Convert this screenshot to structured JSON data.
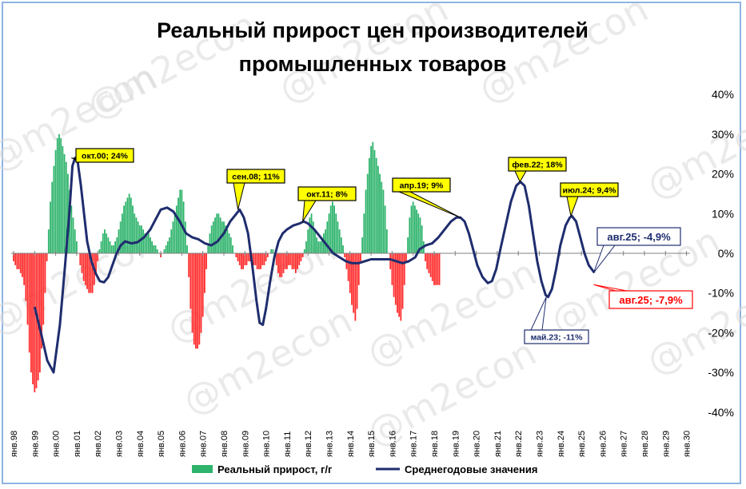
{
  "watermark": "@m2econ",
  "chart_data": {
    "type": "bar+line",
    "title_lines": [
      "Реальный прирост цен производителей",
      "промышленных товаров"
    ],
    "yticks": [
      "40%",
      "30%",
      "20%",
      "10%",
      "0%",
      "-10%",
      "-20%",
      "-30%",
      "-40%"
    ],
    "ylim": [
      -40,
      40
    ],
    "x_years": [
      "янв.98",
      "янв.99",
      "янв.00",
      "янв.01",
      "янв.02",
      "янв.03",
      "янв.04",
      "янв.05",
      "янв.06",
      "янв.07",
      "янв.08",
      "янв.09",
      "янв.10",
      "янв.11",
      "янв.12",
      "янв.13",
      "янв.14",
      "янв.15",
      "янв.16",
      "янв.17",
      "янв.18",
      "янв.19",
      "янв.20",
      "янв.21",
      "янв.22",
      "янв.23",
      "янв.24",
      "янв.25",
      "янв.26",
      "янв.27",
      "янв.28",
      "янв.29",
      "янв.30"
    ],
    "colors": {
      "positive": "#2db36b",
      "negative": "#ff2b2b",
      "line": "#1f2d6e",
      "yellow_box": "#ffff00"
    },
    "series": [
      {
        "name": "Реальный прирост, г/г",
        "kind": "bar",
        "step": "monthly",
        "start": "1998-01",
        "values": [
          -2,
          -3,
          -4,
          -4,
          -5,
          -6,
          -8,
          -12,
          -18,
          -25,
          -30,
          -33,
          -35,
          -34,
          -32,
          -30,
          -24,
          -18,
          -10,
          -2,
          6,
          13,
          18,
          22,
          26,
          29,
          30,
          29,
          27,
          25,
          23,
          20,
          16,
          12,
          9,
          6,
          3,
          0,
          -3,
          -5,
          -7,
          -8,
          -9,
          -10,
          -10,
          -10,
          -8,
          -5,
          -2,
          1,
          3,
          5,
          6,
          5,
          4,
          3,
          2,
          2,
          3,
          4,
          6,
          8,
          10,
          12,
          13,
          14,
          15,
          14,
          12,
          10,
          9,
          8,
          7,
          7,
          6,
          5,
          5,
          5,
          4,
          3,
          2,
          2,
          1,
          0,
          -1,
          0,
          1,
          2,
          3,
          4,
          6,
          8,
          10,
          12,
          14,
          16,
          16,
          13,
          8,
          2,
          -6,
          -14,
          -20,
          -23,
          -24,
          -24,
          -23,
          -20,
          -16,
          -10,
          -4,
          2,
          5,
          7,
          8,
          9,
          10,
          10,
          9,
          8,
          8,
          7,
          6,
          5,
          4,
          2,
          0,
          -1,
          -2,
          -3,
          -4,
          -4,
          -3,
          -3,
          -2,
          -2,
          -3,
          -3,
          -3,
          -4,
          -4,
          -4,
          -3,
          -3,
          -2,
          -1,
          0,
          1,
          1,
          -1,
          -3,
          -5,
          -6,
          -6,
          -5,
          -4,
          -4,
          -3,
          -3,
          -4,
          -4,
          -5,
          -4,
          -3,
          -2,
          -1,
          1,
          3,
          6,
          9,
          10,
          8,
          6,
          4,
          3,
          3,
          4,
          5,
          6,
          8,
          10,
          12,
          13,
          12,
          10,
          8,
          6,
          4,
          2,
          -1,
          -4,
          -7,
          -10,
          -13,
          -15,
          -17,
          -14,
          -8,
          -2,
          4,
          10,
          16,
          20,
          24,
          27,
          28,
          26,
          24,
          22,
          20,
          18,
          16,
          12,
          6,
          0,
          -4,
          -8,
          -11,
          -13,
          -15,
          -16,
          -17,
          -14,
          -8,
          -2,
          4,
          9,
          12,
          13,
          12,
          11,
          10,
          9,
          7,
          3,
          -2,
          -4,
          -5,
          -6,
          -7,
          -8,
          -8,
          -8,
          -8
        ]
      },
      {
        "name": "Среднегодовые значения",
        "kind": "line",
        "points": [
          [
            1999.0,
            -13.5
          ],
          [
            1999.3,
            -20
          ],
          [
            1999.6,
            -27
          ],
          [
            1999.9,
            -30
          ],
          [
            2000.2,
            -18
          ],
          [
            2000.45,
            -3
          ],
          [
            2000.65,
            10
          ],
          [
            2000.8,
            22
          ],
          [
            2000.92,
            24
          ],
          [
            2001.05,
            23
          ],
          [
            2001.2,
            17
          ],
          [
            2001.35,
            10
          ],
          [
            2001.5,
            3
          ],
          [
            2001.7,
            -2
          ],
          [
            2001.9,
            -5
          ],
          [
            2002.1,
            -7
          ],
          [
            2002.3,
            -7.3
          ],
          [
            2002.5,
            -6
          ],
          [
            2002.7,
            -3
          ],
          [
            2002.9,
            0
          ],
          [
            2003.1,
            2
          ],
          [
            2003.3,
            3
          ],
          [
            2003.6,
            2.5
          ],
          [
            2003.9,
            2.8
          ],
          [
            2004.2,
            4
          ],
          [
            2004.5,
            6
          ],
          [
            2004.8,
            9
          ],
          [
            2005.0,
            11
          ],
          [
            2005.3,
            11.5
          ],
          [
            2005.6,
            10.5
          ],
          [
            2005.9,
            8
          ],
          [
            2006.2,
            5
          ],
          [
            2006.5,
            4
          ],
          [
            2006.8,
            3.5
          ],
          [
            2007.1,
            2.5
          ],
          [
            2007.4,
            2
          ],
          [
            2007.7,
            3
          ],
          [
            2008.0,
            5
          ],
          [
            2008.3,
            8
          ],
          [
            2008.6,
            10
          ],
          [
            2008.75,
            11
          ],
          [
            2008.95,
            9
          ],
          [
            2009.15,
            5
          ],
          [
            2009.35,
            -3
          ],
          [
            2009.55,
            -12
          ],
          [
            2009.7,
            -17.5
          ],
          [
            2009.85,
            -18
          ],
          [
            2010.0,
            -14
          ],
          [
            2010.2,
            -7
          ],
          [
            2010.4,
            -1
          ],
          [
            2010.6,
            3
          ],
          [
            2010.8,
            5
          ],
          [
            2011.0,
            6
          ],
          [
            2011.3,
            7
          ],
          [
            2011.6,
            7.5
          ],
          [
            2011.8,
            8
          ],
          [
            2012.0,
            7.5
          ],
          [
            2012.3,
            6
          ],
          [
            2012.6,
            4
          ],
          [
            2012.9,
            2
          ],
          [
            2013.2,
            0
          ],
          [
            2013.5,
            -1
          ],
          [
            2013.8,
            -2
          ],
          [
            2014.1,
            -2.5
          ],
          [
            2014.4,
            -2.5
          ],
          [
            2014.7,
            -2
          ],
          [
            2015.0,
            -1.5
          ],
          [
            2015.3,
            -1.5
          ],
          [
            2015.6,
            -1.5
          ],
          [
            2015.9,
            -1.5
          ],
          [
            2016.2,
            -2
          ],
          [
            2016.5,
            -2.5
          ],
          [
            2016.8,
            -2
          ],
          [
            2017.1,
            -1
          ],
          [
            2017.3,
            1
          ],
          [
            2017.6,
            2
          ],
          [
            2017.9,
            2.5
          ],
          [
            2018.2,
            4
          ],
          [
            2018.5,
            6
          ],
          [
            2018.8,
            8
          ],
          [
            2019.05,
            9
          ],
          [
            2019.25,
            9
          ],
          [
            2019.45,
            8
          ],
          [
            2019.65,
            5
          ],
          [
            2019.85,
            1
          ],
          [
            2020.05,
            -3
          ],
          [
            2020.3,
            -6
          ],
          [
            2020.55,
            -7.5
          ],
          [
            2020.75,
            -7
          ],
          [
            2020.95,
            -4
          ],
          [
            2021.15,
            1
          ],
          [
            2021.4,
            7
          ],
          [
            2021.65,
            13
          ],
          [
            2021.9,
            17
          ],
          [
            2022.1,
            18
          ],
          [
            2022.3,
            17
          ],
          [
            2022.5,
            12
          ],
          [
            2022.7,
            5
          ],
          [
            2022.9,
            -2
          ],
          [
            2023.1,
            -7
          ],
          [
            2023.3,
            -10.5
          ],
          [
            2023.42,
            -11
          ],
          [
            2023.6,
            -9
          ],
          [
            2023.8,
            -4
          ],
          [
            2024.0,
            2
          ],
          [
            2024.25,
            7
          ],
          [
            2024.45,
            9
          ],
          [
            2024.55,
            9.4
          ],
          [
            2024.75,
            8
          ],
          [
            2024.95,
            4
          ],
          [
            2025.15,
            0
          ],
          [
            2025.35,
            -3
          ],
          [
            2025.62,
            -4.9
          ]
        ]
      }
    ],
    "annotations": [
      {
        "text": "окт.00; 24%",
        "style": "yellow",
        "x": 2000.75,
        "y": 24
      },
      {
        "text": "сен.08; 11%",
        "style": "yellow",
        "x": 2008.67,
        "y": 11
      },
      {
        "text": "окт.11; 8%",
        "style": "yellow",
        "x": 2011.75,
        "y": 8
      },
      {
        "text": "апр.19; 9%",
        "style": "yellow",
        "x": 2019.25,
        "y": 9
      },
      {
        "text": "фев.22; 18%",
        "style": "yellow",
        "x": 2022.08,
        "y": 18
      },
      {
        "text": "июл.24; 9,4%",
        "style": "yellow",
        "x": 2024.5,
        "y": 9.4
      },
      {
        "text": "авг.25; -4,9%",
        "style": "navy",
        "x": 2025.58,
        "y": -4.9
      },
      {
        "text": "авг.25; -7,9%",
        "style": "red",
        "x": 2025.58,
        "y": -7.9
      },
      {
        "text": "май.23; -11%",
        "style": "navy-small",
        "x": 2023.33,
        "y": -11
      }
    ],
    "legend": [
      {
        "label": "Реальный прирост, г/г",
        "marker": "bar"
      },
      {
        "label": "Среднегодовые значения",
        "marker": "line"
      }
    ],
    "legend_position": "bottom",
    "grid": false
  }
}
